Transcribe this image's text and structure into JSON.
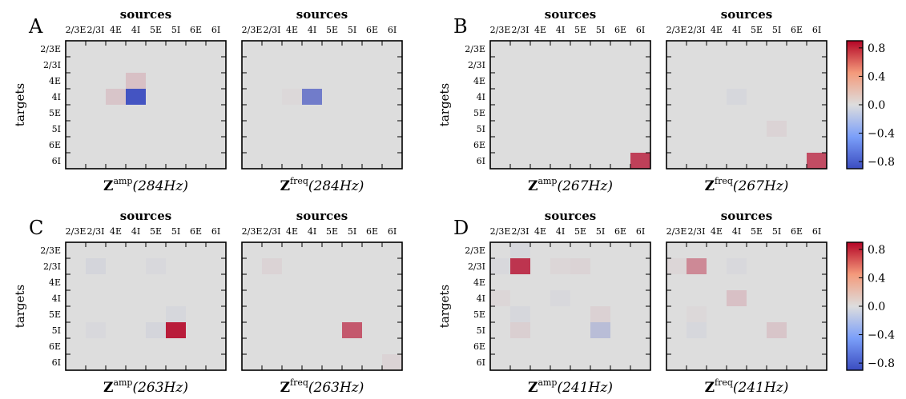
{
  "figure": {
    "colorbar_ticks": [
      "0.8",
      "0.4",
      "0.0",
      "−0.4",
      "−0.8"
    ],
    "colormap": {
      "neg": "#3b4cc0",
      "mid": "#dddddd",
      "pos": "#b40426"
    },
    "rows": [
      [
        "A",
        "B"
      ],
      [
        "C",
        "D"
      ]
    ],
    "colorbar_rows": [
      0,
      1
    ]
  },
  "chart_data": [
    {
      "panel": "A",
      "type": "heatmap",
      "title_top": "sources",
      "ylabel": "targets",
      "x_categories": [
        "2/3E",
        "2/3I",
        "4E",
        "4I",
        "5E",
        "5I",
        "6E",
        "6I"
      ],
      "y_categories": [
        "2/3E",
        "2/3I",
        "4E",
        "4I",
        "5E",
        "5I",
        "6E",
        "6I"
      ],
      "color_range": [
        -0.9,
        0.9
      ],
      "maps": [
        {
          "label_main": "Z",
          "label_sup": "amp",
          "label_rest": "(284Hz)",
          "z": [
            [
              0,
              0,
              0,
              0,
              0,
              0,
              0,
              0
            ],
            [
              0,
              0,
              0,
              0,
              0,
              0,
              0,
              0
            ],
            [
              0,
              0,
              0,
              0.12,
              0,
              0,
              0,
              0
            ],
            [
              0,
              0,
              0.1,
              -0.85,
              0,
              0,
              0,
              0
            ],
            [
              0,
              0,
              0,
              0,
              0,
              0,
              0,
              0
            ],
            [
              0,
              0,
              0,
              0,
              0,
              0,
              0,
              0
            ],
            [
              0,
              0,
              0,
              0,
              0,
              0,
              0,
              0
            ],
            [
              0,
              0,
              0,
              0,
              0,
              0,
              0,
              0
            ]
          ]
        },
        {
          "label_main": "Z",
          "label_sup": "freq",
          "label_rest": "(284Hz)",
          "z": [
            [
              0,
              0,
              0,
              0,
              0,
              0,
              0,
              0
            ],
            [
              0,
              0,
              0,
              0,
              0,
              0,
              0,
              0
            ],
            [
              0,
              0,
              0,
              0,
              0,
              0,
              0,
              0
            ],
            [
              0,
              0,
              0.02,
              -0.6,
              0,
              0,
              0,
              0
            ],
            [
              0,
              0,
              0,
              0,
              0,
              0,
              0,
              0
            ],
            [
              0,
              0,
              0,
              0,
              0,
              0,
              0,
              0
            ],
            [
              0,
              0,
              0,
              0,
              0,
              0,
              0,
              0
            ],
            [
              0,
              0,
              0,
              0,
              0,
              0,
              0,
              0
            ]
          ]
        }
      ]
    },
    {
      "panel": "B",
      "type": "heatmap",
      "title_top": "sources",
      "ylabel": "targets",
      "x_categories": [
        "2/3E",
        "2/3I",
        "4E",
        "4I",
        "5E",
        "5I",
        "6E",
        "6I"
      ],
      "y_categories": [
        "2/3E",
        "2/3I",
        "4E",
        "4I",
        "5E",
        "5I",
        "6E",
        "6I"
      ],
      "color_range": [
        -0.9,
        0.9
      ],
      "maps": [
        {
          "label_main": "Z",
          "label_sup": "amp",
          "label_rest": "(267Hz)",
          "z": [
            [
              0,
              0,
              0,
              0,
              0,
              0,
              0,
              0
            ],
            [
              0,
              0,
              0,
              0,
              0,
              0,
              0,
              0
            ],
            [
              0,
              0,
              0,
              0,
              0,
              0,
              0,
              0
            ],
            [
              0,
              0,
              0,
              0,
              0,
              0,
              0,
              0
            ],
            [
              0,
              0,
              0,
              0,
              0,
              0,
              0,
              0
            ],
            [
              0,
              0,
              0,
              0,
              0,
              0,
              0,
              0
            ],
            [
              0,
              0,
              0,
              0,
              0,
              0,
              0,
              0
            ],
            [
              0,
              0,
              0,
              0,
              0,
              0,
              0,
              0.65
            ]
          ]
        },
        {
          "label_main": "Z",
          "label_sup": "freq",
          "label_rest": "(267Hz)",
          "z": [
            [
              0,
              0,
              0,
              0,
              0,
              0,
              0,
              0
            ],
            [
              0,
              0,
              0,
              0,
              0,
              0,
              0,
              0
            ],
            [
              0,
              0,
              0,
              0,
              0,
              0,
              0,
              0
            ],
            [
              0,
              0,
              0,
              -0.04,
              0,
              0,
              0,
              0
            ],
            [
              0,
              0,
              0,
              0,
              0,
              0,
              0,
              0
            ],
            [
              0,
              0,
              0,
              0,
              0,
              0.04,
              0,
              0
            ],
            [
              0,
              0,
              0,
              0,
              0,
              0,
              0,
              0
            ],
            [
              0,
              0,
              0,
              0,
              0,
              0,
              0,
              0.6
            ]
          ]
        }
      ]
    },
    {
      "panel": "C",
      "type": "heatmap",
      "title_top": "sources",
      "ylabel": "targets",
      "x_categories": [
        "2/3E",
        "2/3I",
        "4E",
        "4I",
        "5E",
        "5I",
        "6E",
        "6I"
      ],
      "y_categories": [
        "2/3E",
        "2/3I",
        "4E",
        "4I",
        "5E",
        "5I",
        "6E",
        "6I"
      ],
      "color_range": [
        -0.9,
        0.9
      ],
      "maps": [
        {
          "label_main": "Z",
          "label_sup": "amp",
          "label_rest": "(263Hz)",
          "z": [
            [
              0,
              0,
              0,
              0,
              0,
              0,
              0,
              0
            ],
            [
              0,
              -0.05,
              0,
              0,
              -0.03,
              0,
              0,
              0
            ],
            [
              0,
              0,
              0,
              0,
              0,
              0,
              0,
              0
            ],
            [
              0,
              0,
              0,
              0,
              0,
              0,
              0,
              0
            ],
            [
              0,
              0,
              0,
              0,
              0,
              -0.04,
              0,
              0
            ],
            [
              0,
              -0.03,
              0,
              0,
              -0.05,
              0.8,
              0,
              0
            ],
            [
              0,
              0,
              0,
              0,
              0,
              0,
              0,
              0
            ],
            [
              0,
              0,
              0,
              0,
              0,
              0,
              0,
              0
            ]
          ]
        },
        {
          "label_main": "Z",
          "label_sup": "freq",
          "label_rest": "(263Hz)",
          "z": [
            [
              0,
              0,
              0,
              0,
              0,
              0,
              0,
              0
            ],
            [
              0,
              0.04,
              0,
              0,
              0,
              0,
              0,
              0
            ],
            [
              0,
              0,
              0,
              0,
              0,
              0,
              0,
              0
            ],
            [
              0,
              0,
              0,
              0,
              0,
              0,
              0,
              0
            ],
            [
              0,
              0,
              0,
              0,
              0,
              0,
              0,
              0
            ],
            [
              0,
              0,
              0,
              0,
              0,
              0.55,
              0,
              0
            ],
            [
              0,
              0,
              0,
              0,
              0,
              0,
              0,
              0
            ],
            [
              0,
              0,
              0,
              0,
              0,
              0,
              0,
              0.04
            ]
          ]
        }
      ]
    },
    {
      "panel": "D",
      "type": "heatmap",
      "title_top": "sources",
      "ylabel": "targets",
      "x_categories": [
        "2/3E",
        "2/3I",
        "4E",
        "4I",
        "5E",
        "5I",
        "6E",
        "6I"
      ],
      "y_categories": [
        "2/3E",
        "2/3I",
        "4E",
        "4I",
        "5E",
        "5I",
        "6E",
        "6I"
      ],
      "color_range": [
        -0.9,
        0.9
      ],
      "maps": [
        {
          "label_main": "Z",
          "label_sup": "amp",
          "label_rest": "(241Hz)",
          "z": [
            [
              0,
              -0.04,
              0,
              0,
              0,
              0,
              0,
              0
            ],
            [
              -0.03,
              0.7,
              0,
              0.03,
              0.04,
              0,
              0,
              0
            ],
            [
              0,
              0,
              0,
              0,
              0,
              0,
              0,
              0
            ],
            [
              0.03,
              0,
              0,
              -0.03,
              0,
              0,
              0,
              0
            ],
            [
              0,
              -0.04,
              0,
              0,
              0,
              0.05,
              0,
              0
            ],
            [
              0,
              0.06,
              0,
              0,
              0,
              -0.2,
              0,
              0
            ],
            [
              0,
              0,
              0,
              0,
              0,
              0,
              0,
              0
            ],
            [
              0,
              0,
              0,
              0,
              0,
              0,
              0,
              0
            ]
          ]
        },
        {
          "label_main": "Z",
          "label_sup": "freq",
          "label_rest": "(241Hz)",
          "z": [
            [
              0,
              0,
              0,
              0,
              0,
              0,
              0,
              0
            ],
            [
              0.03,
              0.35,
              0,
              -0.03,
              0,
              0,
              0,
              0
            ],
            [
              0,
              0,
              0,
              0,
              0,
              0,
              0,
              0
            ],
            [
              0,
              0,
              0,
              0.12,
              0,
              0,
              0,
              0
            ],
            [
              0,
              0.02,
              0,
              0,
              0,
              0,
              0,
              0
            ],
            [
              0,
              -0.04,
              0,
              0,
              0,
              0.1,
              0,
              0
            ],
            [
              0,
              0,
              0,
              0,
              0,
              0,
              0,
              0
            ],
            [
              0,
              0,
              0,
              0,
              0,
              0,
              0,
              0
            ]
          ]
        }
      ]
    }
  ]
}
